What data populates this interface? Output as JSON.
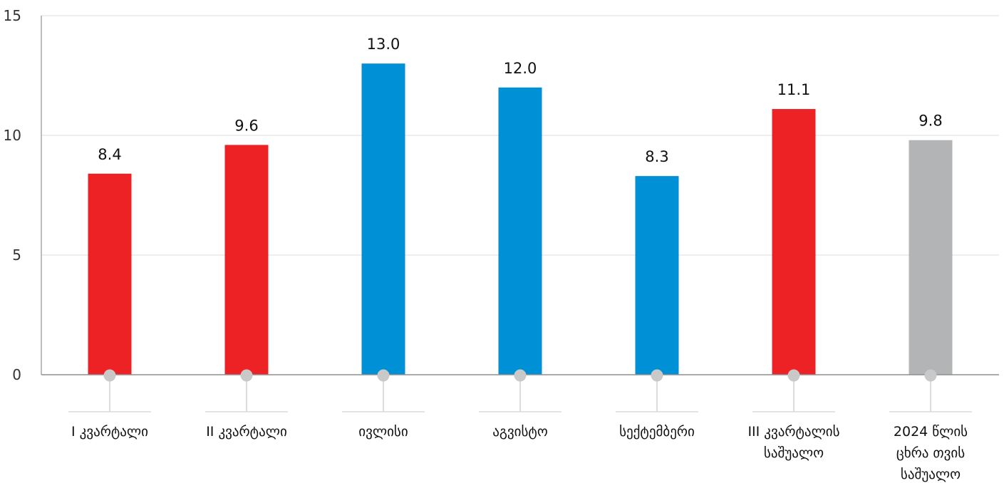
{
  "chart_data": {
    "type": "bar",
    "categories": [
      "I კვარტალი",
      "II კვარტალი",
      "ივლისი",
      "აგვისტო",
      "სექტემბერი",
      "III კვარტალის საშუალო",
      "2024 წლის ცხრა თვის საშუალო"
    ],
    "category_lines": [
      [
        "I კვარტალი"
      ],
      [
        "II კვარტალი"
      ],
      [
        "ივლისი"
      ],
      [
        "აგვისტო"
      ],
      [
        "სექტემბერი"
      ],
      [
        "III კვარტალის",
        "საშუალო"
      ],
      [
        "2024 წლის",
        "ცხრა თვის",
        "საშუალო"
      ]
    ],
    "values": [
      8.4,
      9.6,
      13.0,
      12.0,
      8.3,
      11.1,
      9.8
    ],
    "value_labels": [
      "8.4",
      "9.6",
      "13.0",
      "12.0",
      "8.3",
      "11.1",
      "9.8"
    ],
    "bar_colors": [
      "#ed2224",
      "#ed2224",
      "#0090d5",
      "#0090d5",
      "#0090d5",
      "#ed2224",
      "#b2b4b6"
    ],
    "ylim": [
      0,
      15
    ],
    "yticks": [
      0,
      5,
      10,
      15
    ],
    "grid": true,
    "legend": "none",
    "title": "",
    "xlabel": "",
    "ylabel": ""
  }
}
